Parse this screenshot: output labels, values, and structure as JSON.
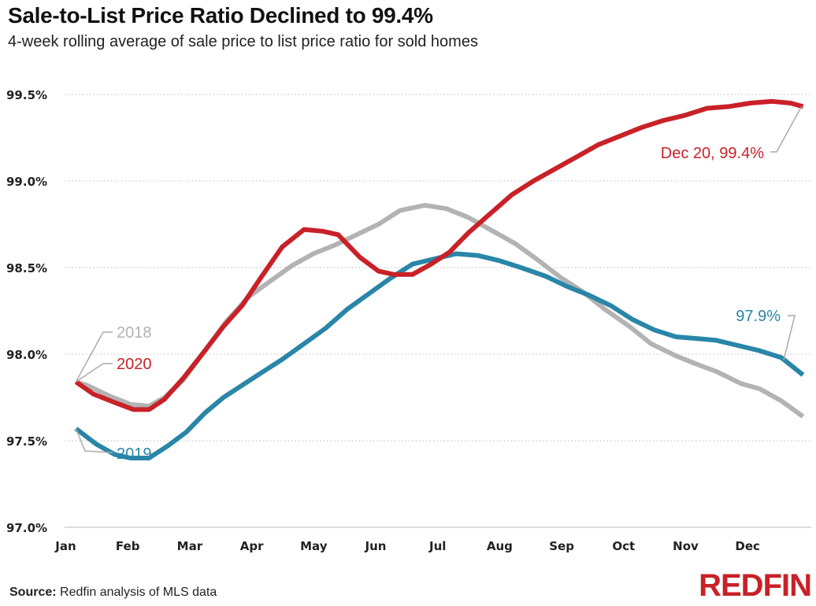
{
  "header": {
    "title": "Sale-to-List Price Ratio Declined to 99.4%",
    "subtitle": "4-week rolling average of sale price to list price ratio for sold homes"
  },
  "footer": {
    "source_label": "Source:",
    "source_text": " Redfin analysis of MLS data",
    "logo": "REDFIN"
  },
  "colors": {
    "2018": "#b3b3b3",
    "2019": "#2a86a8",
    "2020": "#c82127",
    "grid": "#bbbbbb",
    "axis": "#dddddd"
  },
  "chart_data": {
    "type": "line",
    "title": "Sale-to-List Price Ratio Declined to 99.4%",
    "subtitle": "4-week rolling average of sale price to list price ratio for sold homes",
    "xlabel": "",
    "ylabel": "",
    "x_unit": "month index (0 = Jan, 11 = Dec)",
    "xlim": [
      0,
      12.1
    ],
    "ylim": [
      97.0,
      99.5
    ],
    "grid": true,
    "x_tick_labels": [
      "Jan",
      "Feb",
      "Mar",
      "Apr",
      "May",
      "Jun",
      "Jul",
      "Aug",
      "Sep",
      "Oct",
      "Nov",
      "Dec"
    ],
    "y_ticks": [
      97.0,
      97.5,
      98.0,
      98.5,
      99.0,
      99.5
    ],
    "y_tick_labels": [
      "97.0%",
      "97.5%",
      "98.0%",
      "98.5%",
      "99.0%",
      "99.5%"
    ],
    "series": [
      {
        "name": "2018",
        "label": "2018",
        "points": [
          [
            0.17,
            97.84
          ],
          [
            0.35,
            97.82
          ],
          [
            0.7,
            97.76
          ],
          [
            1.05,
            97.71
          ],
          [
            1.35,
            97.7
          ],
          [
            1.6,
            97.75
          ],
          [
            1.9,
            97.85
          ],
          [
            2.25,
            98.02
          ],
          [
            2.6,
            98.19
          ],
          [
            2.95,
            98.33
          ],
          [
            3.3,
            98.42
          ],
          [
            3.65,
            98.51
          ],
          [
            4.0,
            98.58
          ],
          [
            4.35,
            98.63
          ],
          [
            4.7,
            98.69
          ],
          [
            5.05,
            98.75
          ],
          [
            5.4,
            98.83
          ],
          [
            5.8,
            98.86
          ],
          [
            6.15,
            98.84
          ],
          [
            6.5,
            98.79
          ],
          [
            6.85,
            98.72
          ],
          [
            7.25,
            98.64
          ],
          [
            7.6,
            98.55
          ],
          [
            8.0,
            98.44
          ],
          [
            8.35,
            98.36
          ],
          [
            8.7,
            98.26
          ],
          [
            9.1,
            98.16
          ],
          [
            9.45,
            98.06
          ],
          [
            9.85,
            97.99
          ],
          [
            10.2,
            97.94
          ],
          [
            10.5,
            97.9
          ],
          [
            10.9,
            97.83
          ],
          [
            11.2,
            97.8
          ],
          [
            11.55,
            97.73
          ],
          [
            11.9,
            97.64
          ]
        ]
      },
      {
        "name": "2019",
        "label": "2019",
        "points": [
          [
            0.17,
            97.57
          ],
          [
            0.5,
            97.48
          ],
          [
            0.8,
            97.42
          ],
          [
            1.05,
            97.4
          ],
          [
            1.35,
            97.4
          ],
          [
            1.65,
            97.47
          ],
          [
            1.95,
            97.55
          ],
          [
            2.25,
            97.66
          ],
          [
            2.55,
            97.75
          ],
          [
            2.85,
            97.82
          ],
          [
            3.15,
            97.89
          ],
          [
            3.5,
            97.97
          ],
          [
            3.85,
            98.06
          ],
          [
            4.2,
            98.15
          ],
          [
            4.55,
            98.26
          ],
          [
            4.9,
            98.35
          ],
          [
            5.25,
            98.44
          ],
          [
            5.6,
            98.52
          ],
          [
            5.95,
            98.55
          ],
          [
            6.3,
            98.58
          ],
          [
            6.65,
            98.57
          ],
          [
            7.0,
            98.54
          ],
          [
            7.35,
            98.5
          ],
          [
            7.75,
            98.45
          ],
          [
            8.1,
            98.39
          ],
          [
            8.45,
            98.34
          ],
          [
            8.8,
            98.28
          ],
          [
            9.15,
            98.2
          ],
          [
            9.5,
            98.14
          ],
          [
            9.85,
            98.1
          ],
          [
            10.2,
            98.09
          ],
          [
            10.5,
            98.08
          ],
          [
            10.85,
            98.05
          ],
          [
            11.2,
            98.02
          ],
          [
            11.55,
            97.98
          ],
          [
            11.9,
            97.88
          ]
        ]
      },
      {
        "name": "2020",
        "label": "2020",
        "points": [
          [
            0.17,
            97.84
          ],
          [
            0.45,
            97.77
          ],
          [
            0.8,
            97.72
          ],
          [
            1.1,
            97.68
          ],
          [
            1.35,
            97.68
          ],
          [
            1.6,
            97.74
          ],
          [
            1.9,
            97.86
          ],
          [
            2.25,
            98.02
          ],
          [
            2.55,
            98.16
          ],
          [
            2.85,
            98.28
          ],
          [
            3.15,
            98.44
          ],
          [
            3.5,
            98.62
          ],
          [
            3.85,
            98.72
          ],
          [
            4.15,
            98.71
          ],
          [
            4.4,
            98.69
          ],
          [
            4.75,
            98.56
          ],
          [
            5.05,
            98.48
          ],
          [
            5.3,
            98.46
          ],
          [
            5.6,
            98.46
          ],
          [
            5.9,
            98.52
          ],
          [
            6.2,
            98.59
          ],
          [
            6.5,
            98.7
          ],
          [
            6.85,
            98.81
          ],
          [
            7.2,
            98.92
          ],
          [
            7.55,
            99.0
          ],
          [
            7.9,
            99.07
          ],
          [
            8.25,
            99.14
          ],
          [
            8.6,
            99.21
          ],
          [
            8.95,
            99.26
          ],
          [
            9.3,
            99.31
          ],
          [
            9.65,
            99.35
          ],
          [
            10.0,
            99.38
          ],
          [
            10.35,
            99.42
          ],
          [
            10.7,
            99.43
          ],
          [
            11.05,
            99.45
          ],
          [
            11.4,
            99.46
          ],
          [
            11.7,
            99.45
          ],
          [
            11.9,
            99.43
          ]
        ]
      }
    ],
    "annotations": [
      {
        "text": "2018",
        "series": "2018",
        "position": "start"
      },
      {
        "text": "2020",
        "series": "2020",
        "position": "start"
      },
      {
        "text": "2019",
        "series": "2019",
        "position": "start"
      },
      {
        "text": "Dec 20, 99.4%",
        "series": "2020",
        "position": "end"
      },
      {
        "text": "97.9%",
        "series": "2019",
        "position": "end"
      }
    ]
  }
}
